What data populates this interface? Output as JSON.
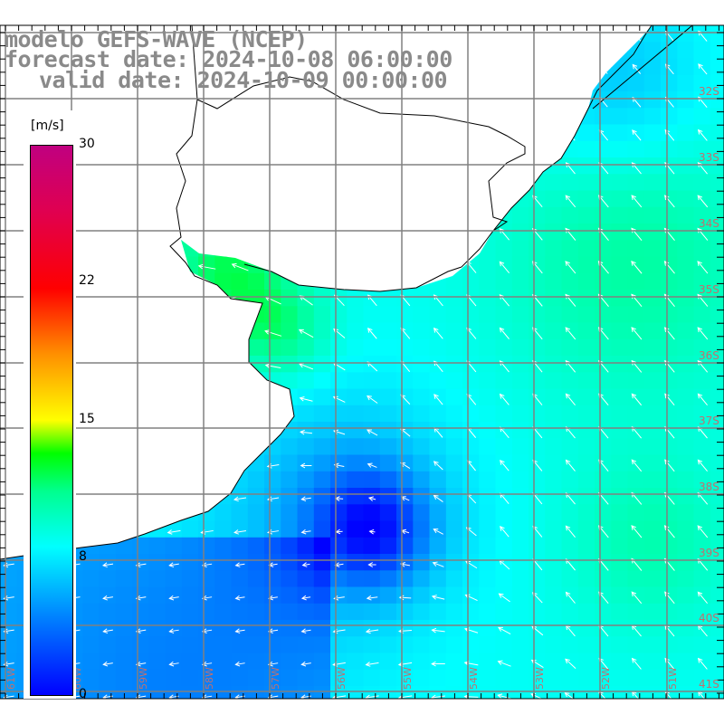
{
  "header": {
    "model_line": "modelo GEFS-WAVE (NCEP)",
    "forecast_line": "forecast date: 2024-10-08 06:00:00",
    "valid_line": "valid date: 2024-10-09 00:00:00"
  },
  "colorbar": {
    "units": "[m/s]",
    "ticks": [
      "30",
      "22",
      "15",
      "8",
      "0"
    ]
  },
  "latitude_labels": [
    "32S",
    "33S",
    "34S",
    "35S",
    "36S",
    "37S",
    "38S",
    "39S",
    "40S",
    "41S"
  ],
  "longitude_labels": [
    "61W",
    "60W",
    "59W",
    "58W",
    "57W",
    "56W",
    "55W",
    "54W",
    "53W",
    "52W",
    "51W"
  ],
  "colors": {
    "land": "#ffffff",
    "grid": "#808080",
    "arrow": "#ffffff",
    "title": "#8a8a8a"
  }
}
